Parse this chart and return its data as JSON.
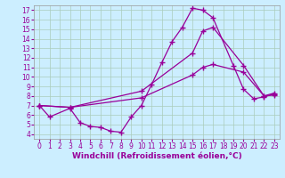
{
  "bg_color": "#cceeff",
  "line_color": "#990099",
  "grid_color": "#aaccbb",
  "xlim": [
    -0.5,
    23.5
  ],
  "ylim": [
    3.5,
    17.5
  ],
  "xticks": [
    0,
    1,
    2,
    3,
    4,
    5,
    6,
    7,
    8,
    9,
    10,
    11,
    12,
    13,
    14,
    15,
    16,
    17,
    18,
    19,
    20,
    21,
    22,
    23
  ],
  "yticks": [
    4,
    5,
    6,
    7,
    8,
    9,
    10,
    11,
    12,
    13,
    14,
    15,
    16,
    17
  ],
  "line1_x": [
    0,
    1,
    3,
    4,
    5,
    6,
    7,
    8,
    9,
    10,
    11,
    12,
    13,
    14,
    15,
    16,
    17,
    19,
    20,
    21,
    22,
    23
  ],
  "line1_y": [
    7.0,
    5.8,
    6.7,
    5.2,
    4.8,
    4.7,
    4.3,
    4.2,
    5.8,
    7.0,
    9.2,
    11.5,
    13.7,
    15.2,
    17.2,
    17.0,
    16.2,
    11.2,
    8.7,
    7.7,
    7.9,
    8.2
  ],
  "line2_x": [
    0,
    3,
    10,
    15,
    16,
    17,
    20,
    22,
    23
  ],
  "line2_y": [
    7.0,
    6.8,
    8.5,
    12.5,
    14.8,
    15.2,
    11.2,
    8.0,
    8.3
  ],
  "line3_x": [
    0,
    3,
    10,
    15,
    16,
    17,
    20,
    22,
    23
  ],
  "line3_y": [
    7.0,
    6.8,
    7.8,
    10.2,
    11.0,
    11.3,
    10.5,
    8.0,
    8.1
  ],
  "xlabel": "Windchill (Refroidissement éolien,°C)",
  "xlabel_fontsize": 6.5,
  "tick_fontsize": 5.5,
  "linewidth": 0.9,
  "markersize": 4,
  "marker": "+"
}
